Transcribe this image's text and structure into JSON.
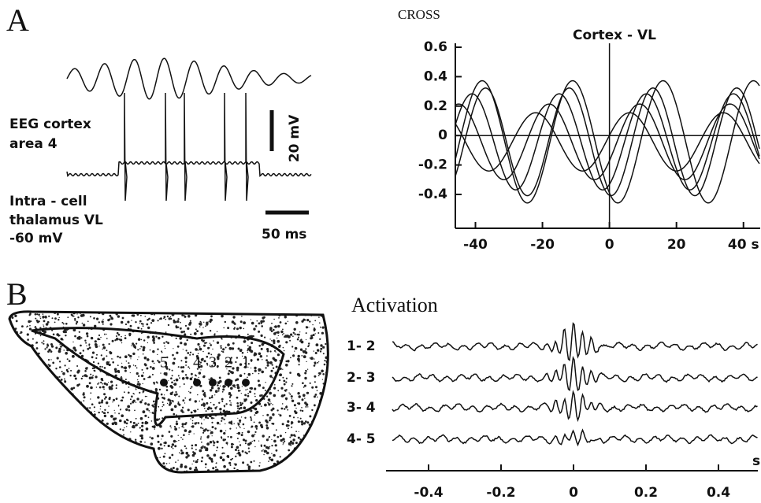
{
  "panel_a": {
    "label": "A",
    "trace_labels": [
      "EEG cortex",
      "area 4",
      "Intra - cell",
      "thalamus VL",
      "-60 mV"
    ],
    "scale_labels": [
      "20 mV",
      "50 ms"
    ],
    "cross": {
      "heading": "CROSS",
      "title": "Cortex - VL",
      "xlim": [
        -46,
        45
      ],
      "ylim": [
        -0.63,
        0.6
      ],
      "xticks": [
        -40,
        -20,
        0,
        20,
        {
          "value": 40,
          "label": "40 s"
        }
      ],
      "yticks": [
        0.6,
        0.4,
        0.2,
        0,
        -0.2,
        -0.4
      ]
    }
  },
  "panel_b": {
    "label": "B",
    "electrodes": [
      "5",
      "4",
      "3",
      "2",
      "1"
    ],
    "activation": {
      "title": "Activation",
      "pairs": [
        "1- 2",
        "2- 3",
        "3- 4",
        "4- 5"
      ],
      "xlim": [
        -0.5,
        0.5
      ],
      "xticks": [
        -0.4,
        -0.2,
        0,
        0.2,
        0.4
      ],
      "unit": "s"
    }
  }
}
